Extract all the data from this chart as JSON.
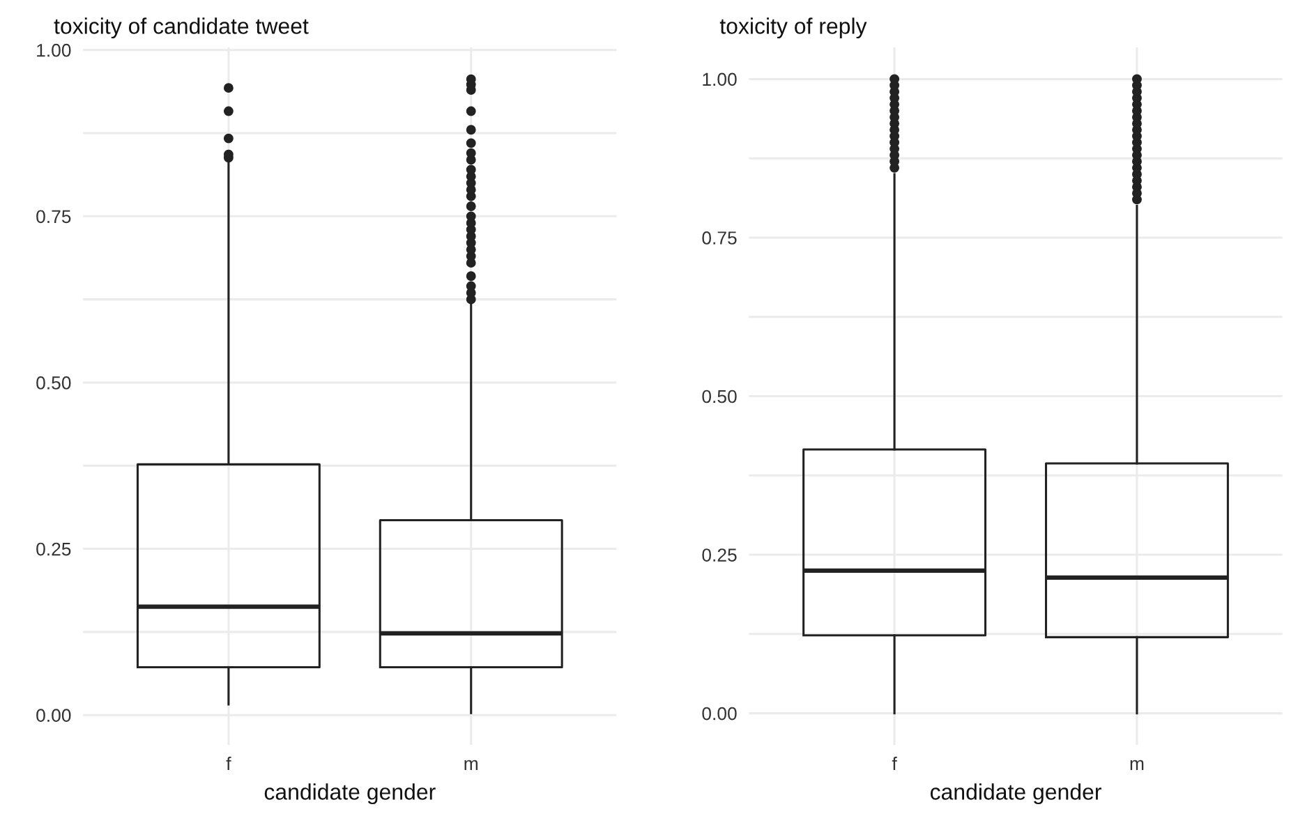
{
  "chart_data": [
    {
      "type": "box",
      "title": "toxicity of candidate tweet",
      "xlabel": "candidate gender",
      "categories": [
        "f",
        "m"
      ],
      "color": "#222222",
      "grid": true,
      "ylim": [
        -0.045,
        1.004
      ],
      "yticks": [
        {
          "value": 0,
          "label": "0.00"
        },
        {
          "value": 0.125,
          "label": null
        },
        {
          "value": 0.25,
          "label": "0.25"
        },
        {
          "value": 0.375,
          "label": null
        },
        {
          "value": 0.5,
          "label": "0.50"
        },
        {
          "value": 0.625,
          "label": null
        },
        {
          "value": 0.75,
          "label": "0.75"
        },
        {
          "value": 0.875,
          "label": null
        },
        {
          "value": 1,
          "label": "1.00"
        }
      ],
      "boxes": [
        {
          "low": 0.016,
          "q1": 0.072,
          "median": 0.163,
          "q3": 0.377,
          "high": 0.83,
          "outliers": [
            0.838,
            0.843,
            0.867,
            0.908,
            0.943
          ]
        },
        {
          "low": 0.003,
          "q1": 0.072,
          "median": 0.123,
          "q3": 0.293,
          "high": 0.62,
          "outliers": [
            0.625,
            0.635,
            0.645,
            0.66,
            0.68,
            0.69,
            0.7,
            0.71,
            0.72,
            0.73,
            0.74,
            0.75,
            0.765,
            0.78,
            0.79,
            0.8,
            0.81,
            0.82,
            0.835,
            0.845,
            0.86,
            0.88,
            0.908,
            0.94,
            0.948,
            0.956
          ]
        }
      ]
    },
    {
      "type": "box",
      "title": "toxicity of reply",
      "xlabel": "candidate gender",
      "categories": [
        "f",
        "m"
      ],
      "color": "#222222",
      "grid": true,
      "ylim": [
        -0.05,
        1.05
      ],
      "yticks": [
        {
          "value": 0,
          "label": "0.00"
        },
        {
          "value": 0.125,
          "label": null
        },
        {
          "value": 0.25,
          "label": "0.25"
        },
        {
          "value": 0.375,
          "label": null
        },
        {
          "value": 0.5,
          "label": "0.50"
        },
        {
          "value": 0.625,
          "label": null
        },
        {
          "value": 0.75,
          "label": "0.75"
        },
        {
          "value": 0.875,
          "label": null
        },
        {
          "value": 1,
          "label": "1.00"
        }
      ],
      "boxes": [
        {
          "low": 0,
          "q1": 0.123,
          "median": 0.225,
          "q3": 0.416,
          "high": 0.85,
          "outliers": [
            0.86,
            0.87,
            0.88,
            0.89,
            0.9,
            0.91,
            0.92,
            0.93,
            0.94,
            0.95,
            0.96,
            0.97,
            0.98,
            0.99,
            1.0
          ]
        },
        {
          "low": 0,
          "q1": 0.12,
          "median": 0.214,
          "q3": 0.394,
          "high": 0.8,
          "outliers": [
            0.81,
            0.82,
            0.83,
            0.84,
            0.85,
            0.86,
            0.87,
            0.88,
            0.89,
            0.9,
            0.91,
            0.92,
            0.93,
            0.94,
            0.95,
            0.96,
            0.97,
            0.98,
            0.99,
            1.0
          ]
        }
      ]
    }
  ]
}
